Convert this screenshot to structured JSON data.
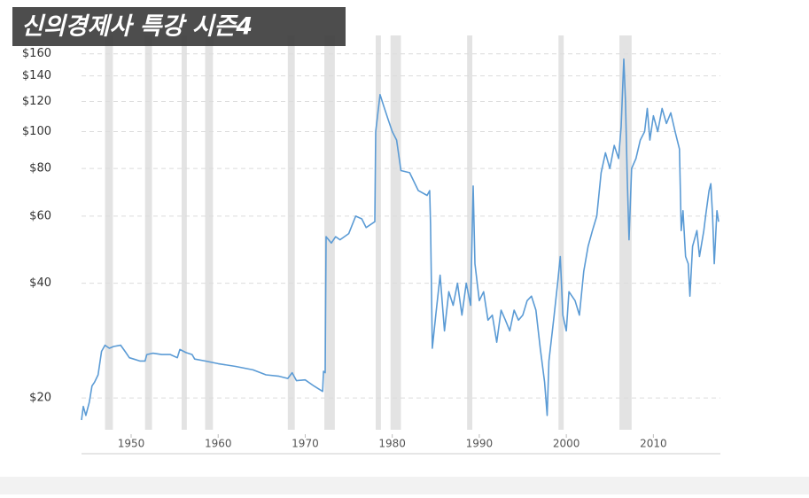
{
  "chart_data": {
    "type": "line",
    "title": "신의경제사 특강 시즌4",
    "log_scale_y": true,
    "grid": true,
    "xlim": [
      1944.3,
      2017.7
    ],
    "xticks": [
      1950,
      1960,
      1970,
      1980,
      1990,
      2000,
      2010
    ],
    "ylim": [
      16.5,
      175
    ],
    "yticks": [
      {
        "value": 20,
        "label": "$20"
      },
      {
        "value": 40,
        "label": "$40"
      },
      {
        "value": 60,
        "label": "$60"
      },
      {
        "value": 80,
        "label": "$80"
      },
      {
        "value": 100,
        "label": "$100"
      },
      {
        "value": 120,
        "label": "$120"
      },
      {
        "value": 140,
        "label": "$140"
      },
      {
        "value": 160,
        "label": "$160"
      }
    ],
    "shaded_color": "#e3e3e3",
    "shaded_ranges": [
      [
        1947.0,
        1947.9
      ],
      [
        1951.6,
        1952.4
      ],
      [
        1955.8,
        1956.4
      ],
      [
        1958.5,
        1959.4
      ],
      [
        1968.0,
        1968.8
      ],
      [
        1972.2,
        1973.4
      ],
      [
        1978.1,
        1978.7
      ],
      [
        1979.8,
        1981.0
      ],
      [
        1988.6,
        1989.2
      ],
      [
        1999.1,
        1999.7
      ],
      [
        2006.1,
        2007.5
      ]
    ],
    "x": [
      1944.3,
      1944.5,
      1944.8,
      1945.2,
      1945.5,
      1945.8,
      1946.2,
      1946.6,
      1947,
      1947.5,
      1948,
      1948.8,
      1949.3,
      1949.8,
      1950.3,
      1951,
      1951.6,
      1951.8,
      1952.5,
      1953.5,
      1954.5,
      1955.3,
      1955.6,
      1956.3,
      1957,
      1957.3,
      1958.5,
      1960,
      1962,
      1964,
      1965.5,
      1967,
      1968,
      1968.5,
      1969,
      1970,
      1971,
      1972,
      1972.1,
      1972.3,
      1972.4,
      1973,
      1973.5,
      1974,
      1975,
      1975.8,
      1976.5,
      1977,
      1978,
      1978.1,
      1978.6,
      1979,
      1979.5,
      1980,
      1980.5,
      1981,
      1982,
      1983,
      1984,
      1984.3,
      1984.4,
      1984.6,
      1985,
      1985.5,
      1986,
      1986.5,
      1987,
      1987.5,
      1988,
      1988.5,
      1989,
      1989.3,
      1989.5,
      1990,
      1990.5,
      1991,
      1991.5,
      1992,
      1992.5,
      1993,
      1993.5,
      1994,
      1994.5,
      1995,
      1995.5,
      1996,
      1996.5,
      1997,
      1997.5,
      1997.8,
      1998,
      1998.6,
      1999,
      1999.3,
      1999.6,
      2000,
      2000.3,
      2001,
      2001.5,
      2002,
      2002.5,
      2003,
      2003.5,
      2004,
      2004.5,
      2005,
      2005.5,
      2006,
      2006.3,
      2006.6,
      2006.8,
      2007,
      2007.2,
      2007.5,
      2008,
      2008.5,
      2009,
      2009.3,
      2009.6,
      2010,
      2010.5,
      2011,
      2011.5,
      2012,
      2012.5,
      2013,
      2013.2,
      2013.4,
      2013.7,
      2014,
      2014.2,
      2014.5,
      2015,
      2015.3,
      2015.8,
      2016,
      2016.4,
      2016.6,
      2016.8,
      2017,
      2017.3,
      2017.5
    ],
    "series": [
      {
        "color": "#5b9bd5",
        "values": [
          17.5,
          19,
          18,
          19.5,
          21.5,
          22,
          23,
          26.5,
          27.5,
          27,
          27.3,
          27.5,
          26.5,
          25.5,
          25.3,
          25,
          25,
          26,
          26.2,
          26,
          26,
          25.5,
          26.8,
          26.3,
          26,
          25.3,
          25,
          24.6,
          24.2,
          23.7,
          23,
          22.8,
          22.5,
          23.3,
          22.2,
          22.3,
          21.5,
          20.8,
          23.5,
          23.3,
          53,
          51,
          53,
          52,
          54,
          60,
          59,
          56,
          58,
          100,
          125,
          117,
          108,
          100,
          95,
          79,
          78,
          70,
          68,
          70,
          57,
          27,
          33,
          42,
          30,
          38,
          35,
          40,
          33,
          40,
          35,
          72,
          45,
          36,
          38,
          32,
          33,
          28,
          34,
          32,
          30,
          34,
          32,
          33,
          36,
          37,
          34,
          27,
          22,
          18,
          25,
          33,
          40,
          47,
          33,
          30,
          38,
          36,
          33,
          43,
          50,
          55,
          60,
          78,
          88,
          80,
          92,
          85,
          103,
          155,
          120,
          75,
          52,
          80,
          85,
          95,
          100,
          115,
          95,
          110,
          100,
          115,
          105,
          112,
          100,
          90,
          55,
          62,
          47,
          45,
          37,
          50,
          55,
          47,
          55,
          60,
          70,
          73,
          60,
          45,
          62,
          58
        ]
      }
    ]
  }
}
